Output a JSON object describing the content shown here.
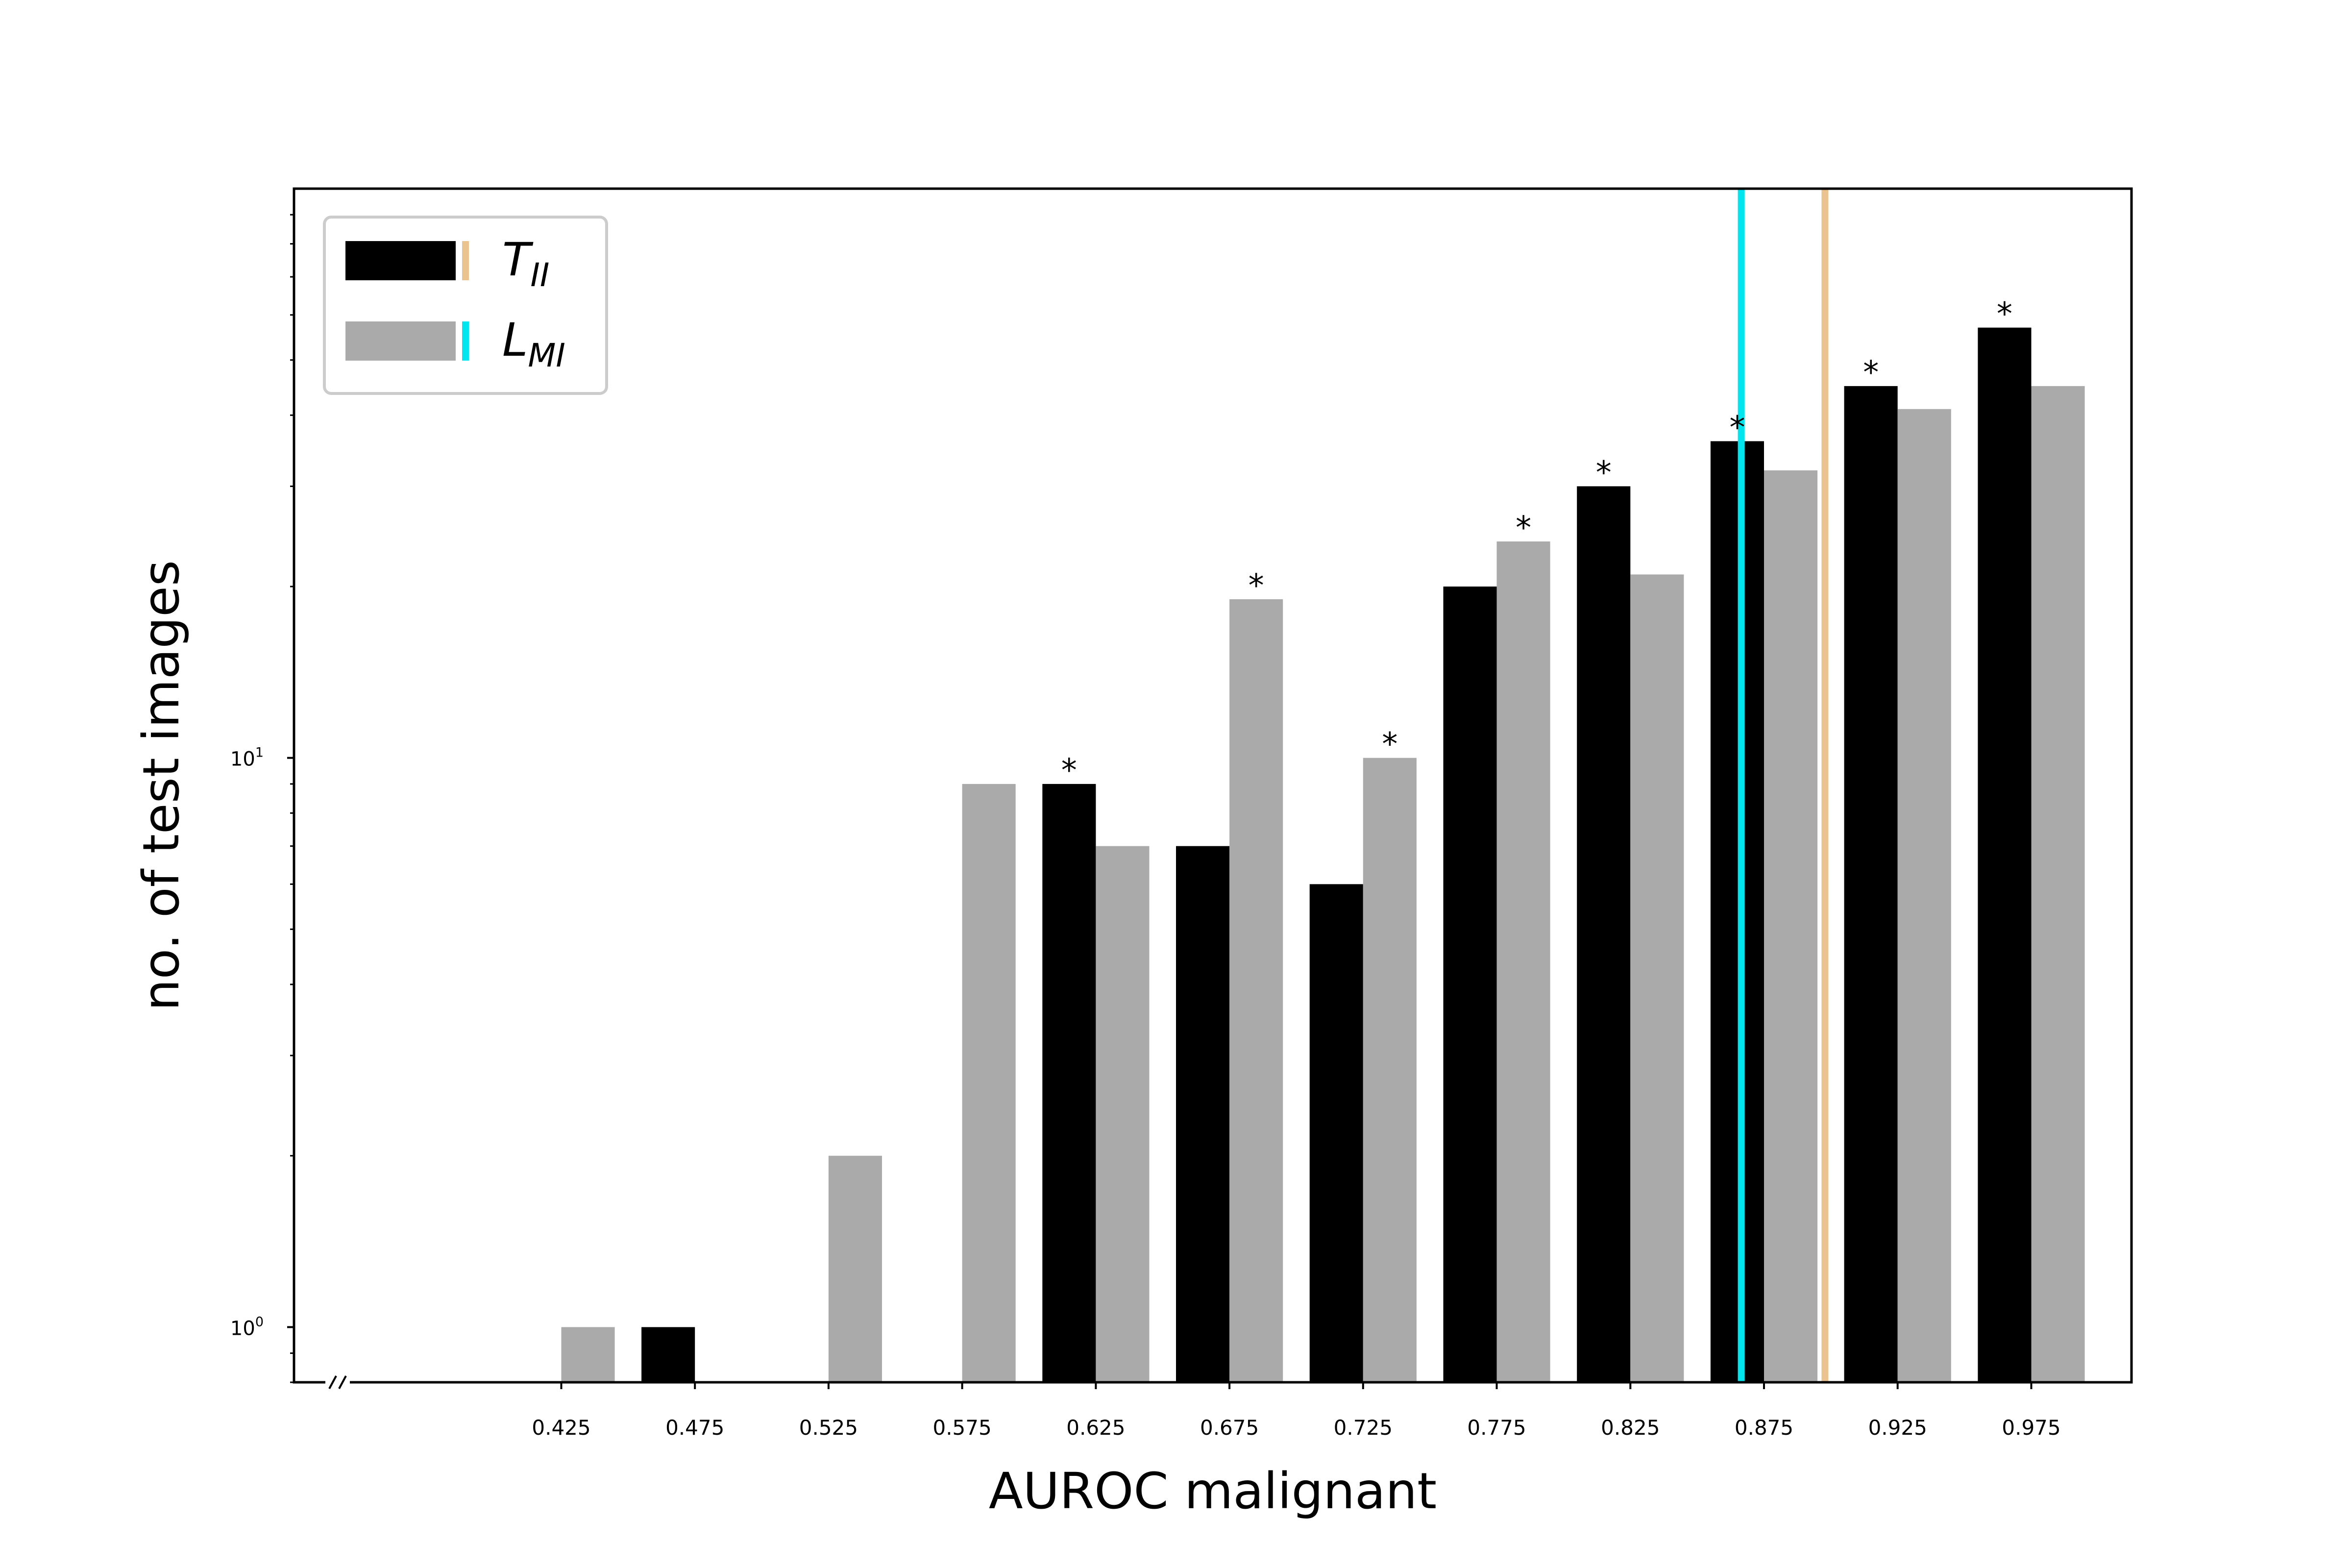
{
  "chart_data": {
    "type": "bar",
    "xlabel": "AUROC malignant",
    "ylabel": "no. of test images",
    "yscale": "log",
    "ylim": [
      0.8,
      100
    ],
    "y_tick_labels": [
      {
        "value": 1,
        "base": "10",
        "exp": "0"
      },
      {
        "value": 10,
        "base": "10",
        "exp": "1"
      }
    ],
    "categories": [
      "0.425",
      "0.475",
      "0.525",
      "0.575",
      "0.625",
      "0.675",
      "0.725",
      "0.775",
      "0.825",
      "0.875",
      "0.925",
      "0.975"
    ],
    "series": [
      {
        "legend_main": "T",
        "legend_sub": "II",
        "color": "#000000",
        "marker_color": "#EBC38E",
        "values": [
          0,
          1,
          0,
          0,
          9,
          7,
          6,
          20,
          30,
          36,
          45,
          57
        ],
        "significant": [
          false,
          false,
          false,
          false,
          true,
          false,
          false,
          false,
          true,
          true,
          true,
          true
        ]
      },
      {
        "legend_main": "L",
        "legend_sub": "MI",
        "color": "#AAAAAA",
        "marker_color": "#00E5EE",
        "values": [
          1,
          0,
          2,
          9,
          7,
          19,
          10,
          24,
          21,
          32,
          41,
          45
        ],
        "significant": [
          false,
          false,
          false,
          false,
          false,
          true,
          true,
          true,
          false,
          false,
          false,
          false
        ]
      }
    ],
    "annotation": "*",
    "vertical_lines": [
      {
        "x": 0.8665,
        "color": "#00E5EE"
      },
      {
        "x": 0.8978,
        "color": "#EBC38E"
      }
    ],
    "x_axis_break": true,
    "legend_position": "upper-left",
    "grid": false
  }
}
